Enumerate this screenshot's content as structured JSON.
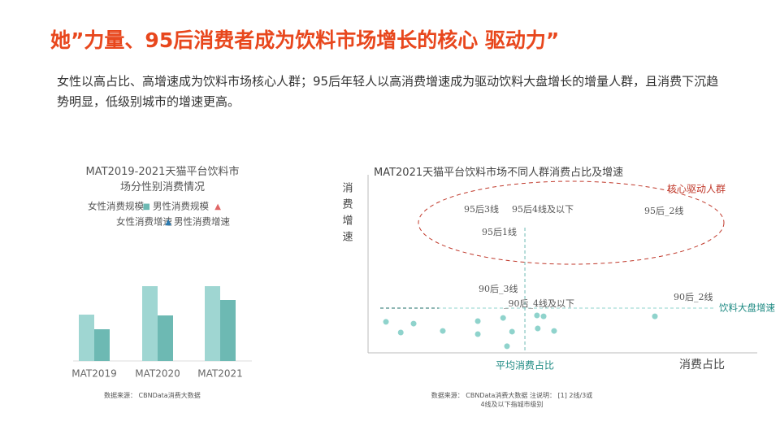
{
  "title": "她”力量、95后消费者成为饮料市场增长的核心 驱动力”",
  "subtitle": "女性以高占比、高增速成为饮料市场核心人群；95后年轻人以高消费增速成为驱动饮料大盘增长的增量人群，且消费下沉趋势明显，低级别城市的增速更高。",
  "chart_data": [
    {
      "type": "bar",
      "title": "MAT2019-2021天猫平台饮料市场分性别消费情况",
      "categories": [
        "MAT2019",
        "MAT2020",
        "MAT2021"
      ],
      "ylim": [
        0,
        100
      ],
      "series": [
        {
          "name": "女性消费规模",
          "color": "#9fd6d2",
          "values": [
            57,
            92,
            92
          ]
        },
        {
          "name": "男性消费规模",
          "color": "#6db9b3",
          "values": [
            39,
            56,
            75
          ]
        },
        {
          "name": "女性消费增速",
          "color": "#e06666",
          "marker": "triangle",
          "values": [
            null,
            null,
            null
          ]
        },
        {
          "name": "男性消费增速",
          "color": "#2a7ab0",
          "marker": "triangle",
          "values": [
            null,
            null,
            null
          ]
        }
      ],
      "source": "数据来源： CBNData消费大数据"
    },
    {
      "type": "scatter",
      "title": "MAT2021天猫平台饮料市场不同人群消费占比及增速",
      "xlabel": "消费占比",
      "ylabel": "消费增速",
      "xlim": [
        0,
        100
      ],
      "ylim": [
        0,
        100
      ],
      "color": "#8fd3cc",
      "x": [
        4.6,
        8.4,
        11.7,
        19.2,
        28.2,
        28.2,
        34.7,
        37.0,
        35.7,
        43.4,
        45.1,
        43.6,
        47.8,
        73.7
      ],
      "values": [
        17.4,
        11.4,
        16.4,
        12.3,
        17.8,
        10.5,
        19.6,
        11.9,
        3.7,
        21.0,
        20.5,
        13.7,
        12.3,
        20.5
      ],
      "avg_x": 40.3,
      "avg_x_label": "平均消费占比",
      "avg_y": 25.1,
      "avg_y_label": "饮料大盘增速",
      "highlight_label": "核心驱动人群",
      "annotations": [
        "95后3线",
        "95后4线及以下",
        "95后_2线",
        "95后1线",
        "90后_3线",
        "_90后_4线及以下",
        "90后_2线"
      ],
      "source": "数据来源： CBNData消费大数据 注说明： [1] 2线/3或4线及以下指城市级别"
    }
  ]
}
